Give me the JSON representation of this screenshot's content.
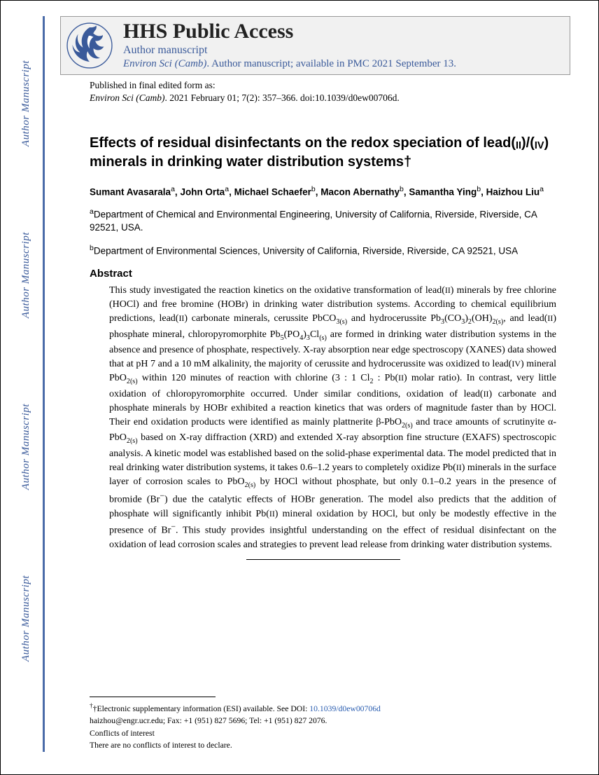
{
  "watermark": "Author Manuscript",
  "header": {
    "title": "HHS Public Access",
    "sub1": "Author manuscript",
    "journal_italic": "Environ Sci (Camb)",
    "sub2_rest": ". Author manuscript; available in PMC 2021 September 13."
  },
  "pubinfo": {
    "line1": "Published in final edited form as:",
    "journal": "Environ Sci (Camb)",
    "rest": ". 2021 February 01; 7(2): 357–366. doi:10.1039/d0ew00706d."
  },
  "title": {
    "part1": "Effects of residual disinfectants on the redox speciation of lead(",
    "sc1": "II",
    "part2": ")/(",
    "sc2": "IV",
    "part3": ") minerals in drinking water distribution systems†"
  },
  "authors": [
    {
      "name": "Sumant Avasarala",
      "sup": "a"
    },
    {
      "name": "John Orta",
      "sup": "a"
    },
    {
      "name": "Michael Schaefer",
      "sup": "b"
    },
    {
      "name": "Macon Abernathy",
      "sup": "b"
    },
    {
      "name": "Samantha Ying",
      "sup": "b"
    },
    {
      "name": "Haizhou Liu",
      "sup": "a"
    }
  ],
  "affiliations": [
    {
      "sup": "a",
      "text": "Department of Chemical and Environmental Engineering, University of California, Riverside, Riverside, CA 92521, USA."
    },
    {
      "sup": "b",
      "text": "Department of Environmental Sciences, University of California, Riverside, Riverside, CA 92521, USA"
    }
  ],
  "abstract": {
    "heading": "Abstract",
    "html": "This study investigated the reaction kinetics on the oxidative transformation of lead(<span class=\"sc\">II</span>) minerals by free chlorine (HOCl) and free bromine (HOBr) in drinking water distribution systems. According to chemical equilibrium predictions, lead(<span class=\"sc\">II</span>) carbonate minerals, cerussite PbCO<sub>3(s)</sub> and hydrocerussite Pb<sub>3</sub>(CO<sub>3</sub>)<sub>2</sub>(OH)<sub>2(s)</sub>, and lead(<span class=\"sc\">II</span>) phosphate mineral, chloropyromorphite Pb<sub>5</sub>(PO<sub>4</sub>)<sub>3</sub>Cl<sub>(s)</sub> are formed in drinking water distribution systems in the absence and presence of phosphate, respectively. X-ray absorption near edge spectroscopy (XANES) data showed that at pH 7 and a 10 mM alkalinity, the majority of cerussite and hydrocerussite was oxidized to lead(<span class=\"sc\">IV</span>) mineral PbO<sub>2(s)</sub> within 120 minutes of reaction with chlorine (3 : 1 Cl<sub>2</sub> : Pb(<span class=\"sc\">II</span>) molar ratio). In contrast, very little oxidation of chloropyromorphite occurred. Under similar conditions, oxidation of lead(<span class=\"sc\">II</span>) carbonate and phosphate minerals by HOBr exhibited a reaction kinetics that was orders of magnitude faster than by HOCl. Their end oxidation products were identified as mainly plattnerite β-PbO<sub>2(s)</sub> and trace amounts of scrutinyite α-PbO<sub>2(s)</sub> based on X-ray diffraction (XRD) and extended X-ray absorption fine structure (EXAFS) spectroscopic analysis. A kinetic model was established based on the solid-phase experimental data. The model predicted that in real drinking water distribution systems, it takes 0.6–1.2 years to completely oxidize Pb(<span class=\"sc\">II</span>) minerals in the surface layer of corrosion scales to PbO<sub>2(s)</sub> by HOCl without phosphate, but only 0.1–0.2 years in the presence of bromide (Br<sup>−</sup>) due the catalytic effects of HOBr generation. The model also predicts that the addition of phosphate will significantly inhibit Pb(<span class=\"sc\">II</span>) mineral oxidation by HOCl, but only be modestly effective in the presence of Br<sup>−</sup>. This study provides insightful understanding on the effect of residual disinfectant on the oxidation of lead corrosion scales and strategies to prevent lead release from drinking water distribution systems."
  },
  "footnotes": {
    "esi_pre": "†Electronic supplementary information (ESI) available. See DOI: ",
    "esi_link": "10.1039/d0ew00706d",
    "contact": "haizhou@engr.ucr.edu; Fax: +1 (951) 827 5696; Tel: +1 (951) 827 2076.",
    "conflicts_h": "Conflicts of interest",
    "conflicts_t": "There are no conflicts of interest to declare."
  },
  "colors": {
    "accent": "#3a5a9a",
    "border": "#4a6ba8",
    "link": "#2a5db0",
    "header_bg": "#f1f1f1"
  }
}
